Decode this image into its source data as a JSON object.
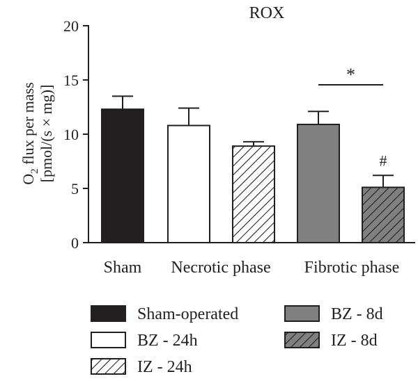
{
  "chart_data": {
    "type": "bar",
    "title": "ROX",
    "ylabel_line1_main": "O",
    "ylabel_line1_sub": "2",
    "ylabel_line1_rest": " flux per mass",
    "ylabel_line2": "[pmol/(s × mg)]",
    "ylim": [
      0,
      20
    ],
    "yticks": [
      "0",
      "5",
      "10",
      "15",
      "20"
    ],
    "groups": [
      "Sham",
      "Necrotic phase",
      "Fibrotic phase"
    ],
    "bars": [
      {
        "series": "Sham-operated",
        "group": "Sham",
        "value": 12.3,
        "error": 1.2
      },
      {
        "series": "BZ - 24h",
        "group": "Necrotic phase",
        "value": 10.8,
        "error": 1.6
      },
      {
        "series": "IZ - 24h",
        "group": "Necrotic phase",
        "value": 8.9,
        "error": 0.4
      },
      {
        "series": "BZ - 8d",
        "group": "Fibrotic phase",
        "value": 10.9,
        "error": 1.2
      },
      {
        "series": "IZ - 8d",
        "group": "Fibrotic phase",
        "value": 5.1,
        "error": 1.1
      }
    ],
    "legend": [
      {
        "label": "Sham-operated",
        "style": "solid-black"
      },
      {
        "label": "BZ - 8d",
        "style": "solid-gray"
      },
      {
        "label": "BZ - 24h",
        "style": "white"
      },
      {
        "label": "IZ - 8d",
        "style": "hatched-gray"
      },
      {
        "label": "IZ - 24h",
        "style": "hatched-white"
      }
    ],
    "annotations": {
      "significance": "*",
      "significance_between": [
        "BZ - 8d",
        "IZ - 8d"
      ],
      "hash": "#",
      "hash_on": "IZ - 8d"
    },
    "colors": {
      "black": "#231f20",
      "gray": "#808080",
      "white": "#ffffff"
    }
  }
}
